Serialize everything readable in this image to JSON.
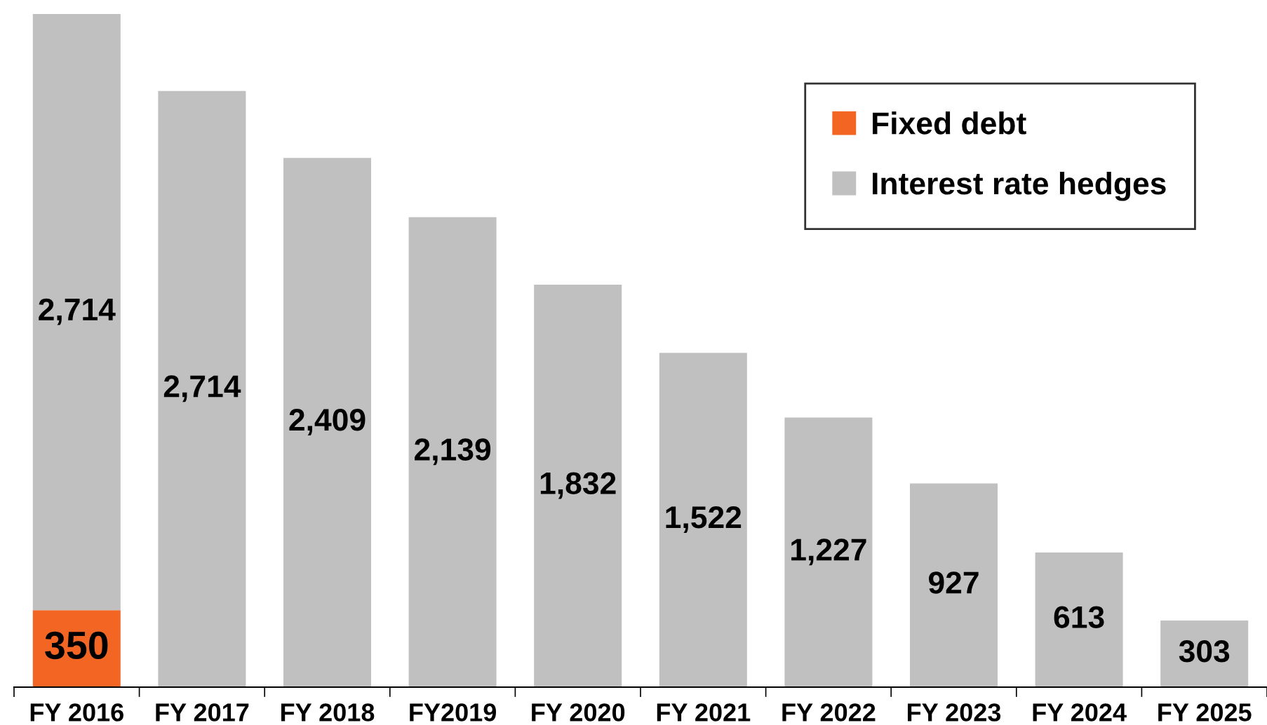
{
  "chart_data": {
    "type": "bar",
    "stacked": true,
    "categories": [
      "FY 2016",
      "FY 2017",
      "FY 2018",
      "FY2019",
      "FY 2020",
      "FY 2021",
      "FY 2022",
      "FY 2023",
      "FY 2024",
      "FY 2025"
    ],
    "series": [
      {
        "name": "Fixed debt",
        "color": "#f26522",
        "values": [
          350,
          null,
          null,
          null,
          null,
          null,
          null,
          null,
          null,
          null
        ],
        "value_labels": [
          "350",
          null,
          null,
          null,
          null,
          null,
          null,
          null,
          null,
          null
        ]
      },
      {
        "name": "Interest rate hedges",
        "color": "#c0c0c0",
        "values": [
          2714,
          2714,
          2409,
          2139,
          1832,
          1522,
          1227,
          927,
          613,
          303
        ],
        "value_labels": [
          "2,714",
          "2,714",
          "2,409",
          "2,139",
          "1,832",
          "1,522",
          "1,227",
          "927",
          "613",
          "303"
        ]
      }
    ],
    "legend": "top right",
    "grid": false
  }
}
